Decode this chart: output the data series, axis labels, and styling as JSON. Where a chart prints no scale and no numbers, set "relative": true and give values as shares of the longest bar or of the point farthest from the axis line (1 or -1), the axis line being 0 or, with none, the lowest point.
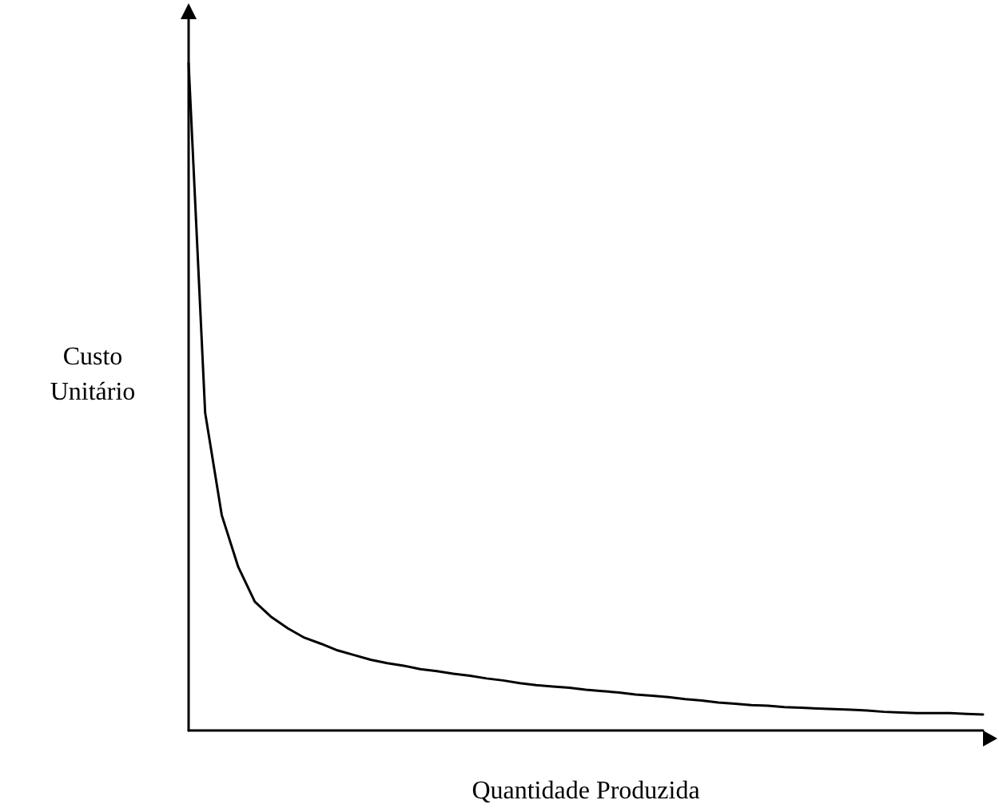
{
  "chart_data": {
    "type": "line",
    "relative": true,
    "xlabel": "Quantidade Produzida",
    "ylabel": "Custo\nUnitário",
    "color": "#000000",
    "marker": "none",
    "line_style": "solid",
    "grid": false,
    "categories": [
      null,
      null,
      null,
      null,
      null,
      null,
      null,
      null,
      null,
      null,
      null,
      null,
      null,
      null,
      null,
      null,
      null,
      null,
      null,
      null,
      null,
      null,
      null,
      null,
      null,
      null,
      null,
      null,
      null,
      null,
      null,
      null,
      null,
      null,
      null,
      null,
      null,
      null,
      null,
      null,
      null,
      null,
      null,
      null,
      null,
      null,
      null,
      null,
      null
    ],
    "values": [
      1.0,
      0.476,
      0.323,
      0.245,
      0.193,
      0.17,
      0.153,
      0.139,
      0.13,
      0.12,
      0.113,
      0.106,
      0.101,
      0.097,
      0.092,
      0.089,
      0.085,
      0.082,
      0.078,
      0.075,
      0.071,
      0.068,
      0.066,
      0.064,
      0.061,
      0.059,
      0.057,
      0.054,
      0.052,
      0.05,
      0.047,
      0.045,
      0.042,
      0.04,
      0.038,
      0.037,
      0.035,
      0.034,
      0.033,
      0.032,
      0.031,
      0.03,
      0.028,
      0.027,
      0.026,
      0.026,
      0.026,
      0.025,
      0.024
    ]
  }
}
